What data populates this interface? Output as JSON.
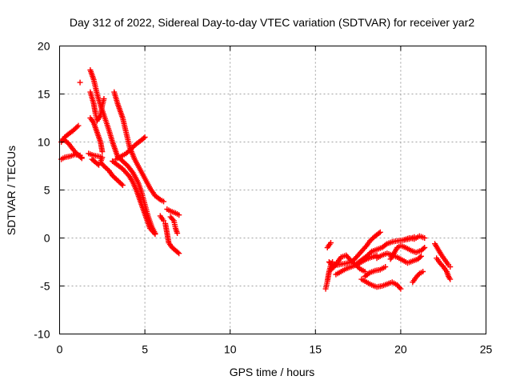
{
  "chart_data": {
    "type": "scatter",
    "title": "Day 312 of 2022, Sidereal Day-to-day VTEC variation (SDTVAR) for receiver yar2",
    "xlabel": "GPS time / hours",
    "ylabel": "SDTVAR / TECUs",
    "xlim": [
      0,
      25
    ],
    "ylim": [
      -10,
      20
    ],
    "xticks": [
      0,
      5,
      10,
      15,
      20,
      25
    ],
    "yticks": [
      -10,
      -5,
      0,
      5,
      10,
      15,
      20
    ],
    "grid": true,
    "marker": "+",
    "color": "#ff0000",
    "tracks": [
      {
        "name": "track-1",
        "points": [
          [
            0.1,
            8.2
          ],
          [
            0.3,
            8.4
          ],
          [
            0.6,
            8.5
          ],
          [
            0.9,
            8.7
          ],
          [
            1.2,
            8.6
          ],
          [
            1.3,
            8.4
          ]
        ]
      },
      {
        "name": "track-2",
        "points": [
          [
            0.1,
            10.0
          ],
          [
            0.3,
            10.5
          ],
          [
            0.5,
            10.8
          ],
          [
            0.8,
            11.2
          ],
          [
            1.1,
            11.7
          ]
        ]
      },
      {
        "name": "track-3",
        "points": [
          [
            0.2,
            10.3
          ],
          [
            0.5,
            9.9
          ],
          [
            0.8,
            9.2
          ],
          [
            1.0,
            8.8
          ],
          [
            1.3,
            8.3
          ]
        ]
      },
      {
        "name": "track-4",
        "points": [
          [
            1.2,
            16.2
          ]
        ]
      },
      {
        "name": "track-5",
        "points": [
          [
            1.8,
            17.5
          ],
          [
            2.0,
            16.5
          ],
          [
            2.2,
            15.0
          ],
          [
            2.4,
            13.8
          ],
          [
            2.6,
            12.8
          ],
          [
            2.9,
            11.2
          ],
          [
            3.1,
            10.0
          ],
          [
            3.4,
            8.5
          ],
          [
            3.7,
            8.0
          ],
          [
            4.0,
            7.5
          ],
          [
            4.3,
            6.8
          ],
          [
            4.6,
            5.8
          ],
          [
            4.8,
            4.8
          ],
          [
            5.0,
            3.5
          ],
          [
            5.2,
            2.2
          ],
          [
            5.4,
            1.2
          ],
          [
            5.6,
            0.5
          ]
        ]
      },
      {
        "name": "track-6",
        "points": [
          [
            1.8,
            15.2
          ],
          [
            2.0,
            14.0
          ],
          [
            2.1,
            13.0
          ],
          [
            2.2,
            12.2
          ],
          [
            2.4,
            12.8
          ],
          [
            2.5,
            13.8
          ],
          [
            2.6,
            14.5
          ]
        ]
      },
      {
        "name": "track-7",
        "points": [
          [
            1.8,
            12.5
          ],
          [
            2.0,
            12.0
          ],
          [
            2.2,
            11.0
          ],
          [
            2.4,
            10.0
          ],
          [
            2.5,
            9.0
          ]
        ]
      },
      {
        "name": "track-8",
        "points": [
          [
            1.7,
            8.8
          ],
          [
            2.0,
            8.6
          ],
          [
            2.3,
            8.5
          ],
          [
            2.5,
            8.4
          ],
          [
            2.4,
            7.9
          ],
          [
            2.6,
            7.5
          ],
          [
            2.9,
            7.0
          ],
          [
            3.1,
            6.5
          ],
          [
            3.4,
            6.0
          ],
          [
            3.7,
            5.5
          ]
        ]
      },
      {
        "name": "track-9",
        "points": [
          [
            1.9,
            8.2
          ],
          [
            2.1,
            7.9
          ],
          [
            2.3,
            7.6
          ]
        ]
      },
      {
        "name": "track-10",
        "points": [
          [
            3.2,
            15.2
          ],
          [
            3.4,
            14.0
          ],
          [
            3.7,
            12.5
          ],
          [
            3.9,
            11.0
          ],
          [
            4.1,
            9.5
          ],
          [
            4.4,
            8.2
          ],
          [
            4.7,
            7.2
          ],
          [
            5.0,
            6.2
          ],
          [
            5.3,
            5.2
          ],
          [
            5.6,
            4.4
          ],
          [
            5.9,
            4.0
          ],
          [
            6.1,
            3.8
          ]
        ]
      },
      {
        "name": "track-11",
        "points": [
          [
            3.3,
            8.2
          ],
          [
            3.6,
            8.5
          ],
          [
            3.9,
            8.8
          ],
          [
            4.2,
            9.3
          ],
          [
            4.5,
            9.8
          ],
          [
            4.8,
            10.2
          ],
          [
            5.0,
            10.5
          ]
        ]
      },
      {
        "name": "track-12",
        "points": [
          [
            3.1,
            8.0
          ],
          [
            3.4,
            7.6
          ],
          [
            3.7,
            7.2
          ],
          [
            3.9,
            6.8
          ],
          [
            4.1,
            6.4
          ],
          [
            4.3,
            5.8
          ],
          [
            4.5,
            5.0
          ],
          [
            4.7,
            4.0
          ],
          [
            4.9,
            3.0
          ],
          [
            5.1,
            2.0
          ],
          [
            5.3,
            1.0
          ],
          [
            5.6,
            0.4
          ]
        ]
      },
      {
        "name": "track-13",
        "points": [
          [
            5.9,
            2.3
          ],
          [
            6.1,
            1.8
          ]
        ]
      },
      {
        "name": "track-14",
        "points": [
          [
            6.3,
            3.0
          ],
          [
            6.5,
            2.8
          ],
          [
            6.8,
            2.6
          ],
          [
            7.0,
            2.4
          ]
        ]
      },
      {
        "name": "track-15",
        "points": [
          [
            6.2,
            1.5
          ],
          [
            6.3,
            0.5
          ],
          [
            6.4,
            -0.5
          ],
          [
            6.6,
            -1.0
          ],
          [
            6.8,
            -1.3
          ],
          [
            7.0,
            -1.6
          ]
        ]
      },
      {
        "name": "track-16",
        "points": [
          [
            6.5,
            2.2
          ],
          [
            6.7,
            1.8
          ],
          [
            6.8,
            1.0
          ],
          [
            6.9,
            0.5
          ]
        ]
      },
      {
        "name": "track-17",
        "points": [
          [
            15.7,
            -1.0
          ],
          [
            15.9,
            -0.5
          ]
        ]
      },
      {
        "name": "track-18",
        "points": [
          [
            15.6,
            -5.3
          ],
          [
            15.7,
            -4.5
          ],
          [
            15.8,
            -3.5
          ],
          [
            15.9,
            -2.8
          ],
          [
            16.0,
            -2.5
          ]
        ]
      },
      {
        "name": "track-19",
        "points": [
          [
            15.8,
            -2.5
          ],
          [
            16.0,
            -2.8
          ],
          [
            16.3,
            -2.8
          ],
          [
            16.6,
            -2.7
          ],
          [
            16.9,
            -2.6
          ],
          [
            17.1,
            -2.5
          ],
          [
            17.3,
            -2.2
          ],
          [
            17.5,
            -1.8
          ],
          [
            17.8,
            -1.2
          ],
          [
            18.0,
            -0.8
          ],
          [
            18.2,
            -0.3
          ],
          [
            18.5,
            0.2
          ],
          [
            18.8,
            0.6
          ]
        ]
      },
      {
        "name": "track-20",
        "points": [
          [
            15.9,
            -3.3
          ],
          [
            16.1,
            -3.0
          ],
          [
            16.3,
            -2.5
          ],
          [
            16.5,
            -2.0
          ],
          [
            16.8,
            -1.8
          ],
          [
            17.0,
            -2.2
          ],
          [
            17.3,
            -2.7
          ],
          [
            17.6,
            -3.2
          ],
          [
            17.9,
            -3.5
          ]
        ]
      },
      {
        "name": "track-21",
        "points": [
          [
            16.2,
            -3.8
          ],
          [
            16.5,
            -3.5
          ],
          [
            16.8,
            -3.2
          ],
          [
            17.1,
            -3.0
          ],
          [
            17.4,
            -2.8
          ],
          [
            17.7,
            -2.5
          ],
          [
            18.0,
            -2.2
          ],
          [
            18.3,
            -2.0
          ],
          [
            18.6,
            -1.8
          ]
        ]
      },
      {
        "name": "track-22",
        "points": [
          [
            17.4,
            -2.7
          ],
          [
            17.7,
            -2.3
          ],
          [
            18.0,
            -1.9
          ],
          [
            18.3,
            -1.4
          ],
          [
            18.6,
            -1.2
          ],
          [
            18.9,
            -1.0
          ],
          [
            19.2,
            -0.6
          ],
          [
            19.5,
            -0.4
          ],
          [
            19.8,
            -0.3
          ],
          [
            20.2,
            -0.2
          ],
          [
            20.5,
            -0.1
          ],
          [
            20.8,
            0.1
          ]
        ]
      },
      {
        "name": "track-23",
        "points": [
          [
            17.7,
            -4.3
          ],
          [
            18.0,
            -4.6
          ],
          [
            18.3,
            -4.9
          ],
          [
            18.6,
            -5.1
          ],
          [
            18.9,
            -5.0
          ],
          [
            19.2,
            -4.8
          ],
          [
            19.5,
            -4.6
          ],
          [
            19.8,
            -4.9
          ],
          [
            20.0,
            -5.3
          ]
        ]
      },
      {
        "name": "track-24",
        "points": [
          [
            17.9,
            -4.0
          ],
          [
            18.2,
            -3.6
          ],
          [
            18.5,
            -3.4
          ],
          [
            18.8,
            -3.3
          ],
          [
            19.1,
            -3.0
          ]
        ]
      },
      {
        "name": "track-25",
        "points": [
          [
            18.6,
            -2.1
          ],
          [
            18.9,
            -1.8
          ],
          [
            19.2,
            -1.6
          ],
          [
            19.5,
            -1.8
          ],
          [
            19.8,
            -2.0
          ],
          [
            20.1,
            -2.3
          ],
          [
            20.4,
            -2.6
          ],
          [
            20.7,
            -2.4
          ],
          [
            21.0,
            -2.2
          ],
          [
            21.2,
            -1.9
          ]
        ]
      },
      {
        "name": "track-26",
        "points": [
          [
            19.4,
            -2.2
          ],
          [
            19.6,
            -1.6
          ],
          [
            19.8,
            -1.0
          ],
          [
            20.0,
            -0.8
          ],
          [
            20.3,
            -1.0
          ],
          [
            20.6,
            -1.3
          ],
          [
            20.9,
            -1.5
          ],
          [
            21.2,
            -1.3
          ],
          [
            21.4,
            -1.0
          ]
        ]
      },
      {
        "name": "track-27",
        "points": [
          [
            20.2,
            -0.2
          ],
          [
            20.5,
            0.0
          ],
          [
            20.8,
            -0.1
          ],
          [
            21.1,
            0.2
          ],
          [
            21.4,
            0.0
          ]
        ]
      },
      {
        "name": "track-28",
        "points": [
          [
            20.7,
            -4.6
          ],
          [
            20.9,
            -4.1
          ],
          [
            21.1,
            -3.7
          ],
          [
            21.3,
            -3.5
          ]
        ]
      },
      {
        "name": "track-29",
        "points": [
          [
            22.0,
            -0.6
          ],
          [
            22.2,
            -1.2
          ],
          [
            22.4,
            -1.8
          ],
          [
            22.6,
            -2.3
          ],
          [
            22.8,
            -2.8
          ],
          [
            22.9,
            -3.0
          ]
        ]
      },
      {
        "name": "track-30",
        "points": [
          [
            22.1,
            -2.1
          ],
          [
            22.3,
            -2.6
          ],
          [
            22.5,
            -3.0
          ],
          [
            22.7,
            -3.5
          ],
          [
            22.8,
            -4.0
          ],
          [
            22.9,
            -4.3
          ]
        ]
      }
    ]
  }
}
